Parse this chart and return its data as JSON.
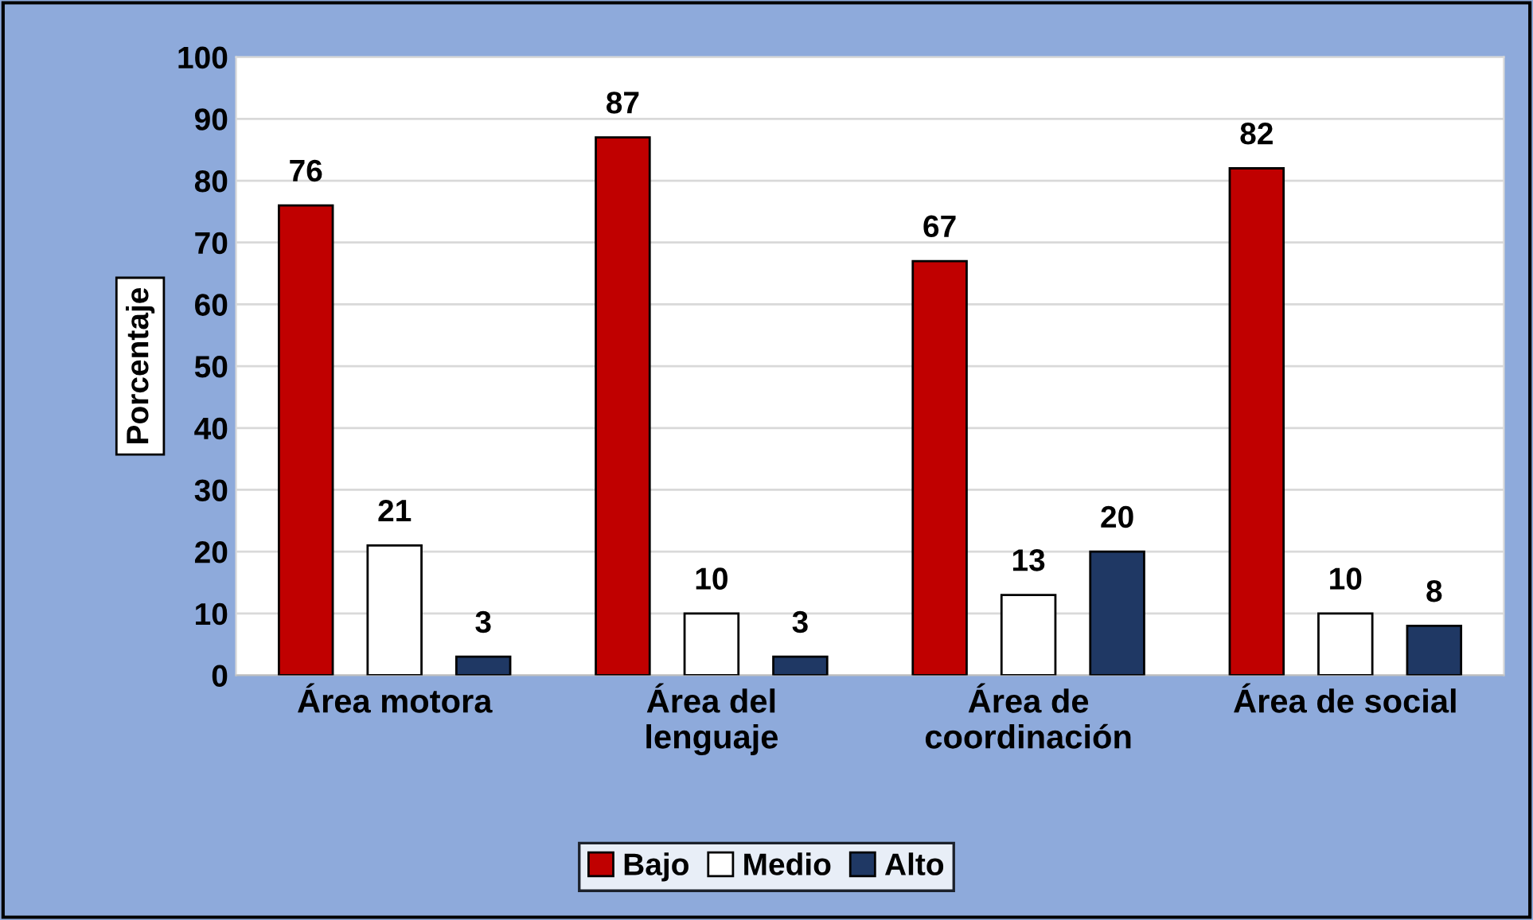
{
  "chart_data": {
    "type": "bar",
    "ylabel": "Porcentaje",
    "categories": [
      "Área motora",
      "Área del\nlenguaje",
      "Área de\ncoordinación",
      "Área de social"
    ],
    "series": [
      {
        "name": "Bajo",
        "color": "#c00000",
        "values": [
          76,
          87,
          67,
          82
        ]
      },
      {
        "name": "Medio",
        "color": "#ffffff",
        "values": [
          21,
          10,
          13,
          10
        ]
      },
      {
        "name": "Alto",
        "color": "#1f3864",
        "values": [
          3,
          3,
          20,
          8
        ]
      }
    ],
    "ylim": [
      0,
      100
    ],
    "yticks": [
      0,
      10,
      20,
      30,
      40,
      50,
      60,
      70,
      80,
      90,
      100
    ],
    "grid": "y",
    "legend": "bottom",
    "data_labels": true
  }
}
